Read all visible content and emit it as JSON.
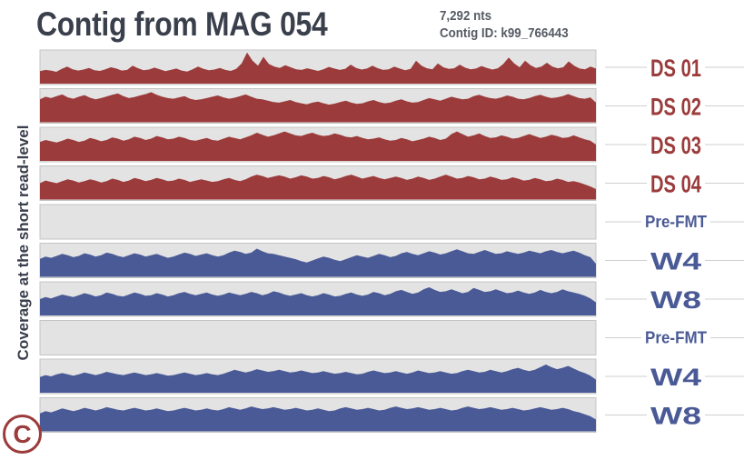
{
  "header": {
    "title": "Contig from MAG 054",
    "length": "7,292 nts",
    "contig_id": "Contig ID: k99_766443"
  },
  "panel_letter": "C",
  "chart_data": {
    "type": "area",
    "title": "Contig from MAG 054",
    "ylabel": "Coverage at the short read-level",
    "xlabel": "",
    "x_extent": [
      0,
      7292
    ],
    "series": [
      {
        "name": "DS 01",
        "color": "#9c3b3b",
        "label_size": "large",
        "values": [
          0.38,
          0.42,
          0.4,
          0.36,
          0.45,
          0.52,
          0.44,
          0.4,
          0.43,
          0.48,
          0.41,
          0.39,
          0.44,
          0.5,
          0.46,
          0.4,
          0.42,
          0.55,
          0.47,
          0.41,
          0.43,
          0.49,
          0.44,
          0.38,
          0.42,
          0.46,
          0.4,
          0.37,
          0.44,
          0.52,
          0.45,
          0.41,
          0.43,
          0.48,
          0.42,
          0.39,
          0.45,
          0.62,
          0.95,
          0.7,
          0.55,
          0.82,
          0.6,
          0.52,
          0.48,
          0.56,
          0.5,
          0.44,
          0.42,
          0.47,
          0.43,
          0.39,
          0.44,
          0.51,
          0.46,
          0.42,
          0.45,
          0.58,
          0.48,
          0.43,
          0.46,
          0.55,
          0.47,
          0.42,
          0.44,
          0.52,
          0.46,
          0.41,
          0.45,
          0.7,
          0.55,
          0.47,
          0.44,
          0.62,
          0.5,
          0.45,
          0.47,
          0.58,
          0.49,
          0.44,
          0.46,
          0.54,
          0.48,
          0.43,
          0.47,
          0.6,
          0.8,
          0.62,
          0.5,
          0.7,
          0.56,
          0.48,
          0.52,
          0.64,
          0.52,
          0.47,
          0.5,
          0.68,
          0.55,
          0.46,
          0.44,
          0.52,
          0.46
        ]
      },
      {
        "name": "DS 02",
        "color": "#9c3b3b",
        "label_size": "large",
        "values": [
          0.7,
          0.78,
          0.74,
          0.8,
          0.85,
          0.76,
          0.72,
          0.78,
          0.83,
          0.75,
          0.7,
          0.74,
          0.79,
          0.84,
          0.88,
          0.8,
          0.74,
          0.77,
          0.82,
          0.86,
          0.92,
          0.84,
          0.78,
          0.74,
          0.72,
          0.76,
          0.8,
          0.72,
          0.68,
          0.7,
          0.74,
          0.78,
          0.82,
          0.76,
          0.72,
          0.75,
          0.8,
          0.85,
          0.78,
          0.72,
          0.7,
          0.66,
          0.62,
          0.6,
          0.64,
          0.68,
          0.62,
          0.58,
          0.55,
          0.6,
          0.63,
          0.58,
          0.54,
          0.57,
          0.62,
          0.66,
          0.6,
          0.56,
          0.58,
          0.64,
          0.68,
          0.62,
          0.58,
          0.6,
          0.66,
          0.7,
          0.64,
          0.6,
          0.62,
          0.68,
          0.74,
          0.7,
          0.66,
          0.72,
          0.78,
          0.74,
          0.7,
          0.72,
          0.8,
          0.84,
          0.78,
          0.74,
          0.72,
          0.76,
          0.82,
          0.78,
          0.72,
          0.7,
          0.74,
          0.8,
          0.84,
          0.78,
          0.74,
          0.76,
          0.8,
          0.86,
          0.8,
          0.74,
          0.72,
          0.76,
          0.6
        ]
      },
      {
        "name": "DS 03",
        "color": "#9c3b3b",
        "label_size": "large",
        "values": [
          0.58,
          0.64,
          0.6,
          0.56,
          0.62,
          0.68,
          0.64,
          0.58,
          0.62,
          0.7,
          0.66,
          0.6,
          0.64,
          0.72,
          0.68,
          0.62,
          0.66,
          0.74,
          0.7,
          0.64,
          0.68,
          0.76,
          0.72,
          0.66,
          0.68,
          0.74,
          0.7,
          0.64,
          0.62,
          0.66,
          0.7,
          0.64,
          0.62,
          0.68,
          0.74,
          0.7,
          0.66,
          0.72,
          0.78,
          0.86,
          0.8,
          0.74,
          0.78,
          0.84,
          0.9,
          0.84,
          0.78,
          0.76,
          0.82,
          0.86,
          0.8,
          0.76,
          0.78,
          0.84,
          0.8,
          0.74,
          0.72,
          0.76,
          0.7,
          0.66,
          0.68,
          0.72,
          0.66,
          0.62,
          0.64,
          0.7,
          0.66,
          0.6,
          0.64,
          0.68,
          0.74,
          0.7,
          0.64,
          0.68,
          0.82,
          0.9,
          0.82,
          0.74,
          0.78,
          0.84,
          0.76,
          0.7,
          0.72,
          0.78,
          0.74,
          0.68,
          0.7,
          0.76,
          0.82,
          0.76,
          0.7,
          0.74,
          0.8,
          0.76,
          0.7,
          0.72,
          0.78,
          0.72,
          0.66,
          0.62,
          0.5
        ]
      },
      {
        "name": "DS 04",
        "color": "#9c3b3b",
        "label_size": "large",
        "values": [
          0.5,
          0.58,
          0.54,
          0.5,
          0.56,
          0.62,
          0.58,
          0.52,
          0.56,
          0.62,
          0.58,
          0.52,
          0.56,
          0.64,
          0.6,
          0.54,
          0.58,
          0.66,
          0.62,
          0.56,
          0.6,
          0.66,
          0.62,
          0.56,
          0.58,
          0.64,
          0.6,
          0.54,
          0.58,
          0.62,
          0.58,
          0.54,
          0.56,
          0.62,
          0.66,
          0.6,
          0.56,
          0.62,
          0.7,
          0.76,
          0.72,
          0.66,
          0.7,
          0.74,
          0.7,
          0.64,
          0.68,
          0.74,
          0.7,
          0.64,
          0.66,
          0.72,
          0.68,
          0.62,
          0.66,
          0.72,
          0.76,
          0.7,
          0.64,
          0.68,
          0.72,
          0.66,
          0.62,
          0.66,
          0.7,
          0.66,
          0.6,
          0.64,
          0.7,
          0.66,
          0.6,
          0.64,
          0.7,
          0.76,
          0.7,
          0.64,
          0.66,
          0.72,
          0.68,
          0.62,
          0.64,
          0.7,
          0.66,
          0.6,
          0.62,
          0.68,
          0.64,
          0.58,
          0.6,
          0.66,
          0.62,
          0.56,
          0.58,
          0.64,
          0.6,
          0.54,
          0.56,
          0.52,
          0.46,
          0.4,
          0.32
        ]
      },
      {
        "name": "Pre-FMT",
        "color": "#4a5a96",
        "label_size": "small",
        "values": []
      },
      {
        "name": "W4",
        "color": "#4a5a96",
        "label_size": "large",
        "values": [
          0.55,
          0.62,
          0.58,
          0.64,
          0.7,
          0.66,
          0.6,
          0.64,
          0.72,
          0.68,
          0.62,
          0.66,
          0.74,
          0.7,
          0.64,
          0.6,
          0.66,
          0.72,
          0.68,
          0.62,
          0.66,
          0.7,
          0.64,
          0.58,
          0.62,
          0.68,
          0.74,
          0.7,
          0.64,
          0.68,
          0.72,
          0.66,
          0.62,
          0.66,
          0.74,
          0.8,
          0.76,
          0.7,
          0.74,
          0.86,
          0.78,
          0.72,
          0.7,
          0.66,
          0.62,
          0.58,
          0.54,
          0.48,
          0.44,
          0.5,
          0.56,
          0.62,
          0.58,
          0.52,
          0.48,
          0.54,
          0.6,
          0.66,
          0.62,
          0.58,
          0.64,
          0.7,
          0.66,
          0.6,
          0.64,
          0.72,
          0.76,
          0.7,
          0.66,
          0.72,
          0.78,
          0.74,
          0.68,
          0.72,
          0.78,
          0.84,
          0.78,
          0.72,
          0.7,
          0.76,
          0.82,
          0.76,
          0.7,
          0.72,
          0.78,
          0.74,
          0.7,
          0.74,
          0.8,
          0.76,
          0.72,
          0.78,
          0.82,
          0.76,
          0.72,
          0.76,
          0.8,
          0.74,
          0.66,
          0.6,
          0.4
        ]
      },
      {
        "name": "W8",
        "color": "#4a5a96",
        "label_size": "large",
        "values": [
          0.5,
          0.56,
          0.52,
          0.58,
          0.64,
          0.6,
          0.56,
          0.62,
          0.68,
          0.64,
          0.58,
          0.62,
          0.7,
          0.66,
          0.6,
          0.58,
          0.64,
          0.7,
          0.66,
          0.6,
          0.62,
          0.68,
          0.64,
          0.58,
          0.62,
          0.68,
          0.72,
          0.66,
          0.62,
          0.66,
          0.7,
          0.64,
          0.6,
          0.64,
          0.7,
          0.66,
          0.62,
          0.66,
          0.72,
          0.68,
          0.62,
          0.66,
          0.74,
          0.7,
          0.64,
          0.6,
          0.64,
          0.68,
          0.62,
          0.58,
          0.62,
          0.68,
          0.64,
          0.58,
          0.6,
          0.66,
          0.7,
          0.64,
          0.6,
          0.64,
          0.72,
          0.68,
          0.62,
          0.66,
          0.74,
          0.78,
          0.72,
          0.66,
          0.7,
          0.8,
          0.86,
          0.78,
          0.72,
          0.74,
          0.8,
          0.74,
          0.68,
          0.72,
          0.84,
          0.78,
          0.72,
          0.74,
          0.8,
          0.74,
          0.68,
          0.7,
          0.76,
          0.7,
          0.66,
          0.7,
          0.78,
          0.72,
          0.68,
          0.72,
          0.8,
          0.74,
          0.7,
          0.66,
          0.6,
          0.52,
          0.4
        ]
      },
      {
        "name": "Pre-FMT",
        "color": "#4a5a96",
        "label_size": "small",
        "values": []
      },
      {
        "name": "W4",
        "color": "#4a5a96",
        "label_size": "large",
        "values": [
          0.48,
          0.54,
          0.5,
          0.56,
          0.6,
          0.56,
          0.52,
          0.56,
          0.62,
          0.58,
          0.54,
          0.58,
          0.64,
          0.6,
          0.56,
          0.54,
          0.58,
          0.62,
          0.58,
          0.54,
          0.56,
          0.6,
          0.56,
          0.52,
          0.54,
          0.58,
          0.62,
          0.58,
          0.54,
          0.56,
          0.6,
          0.56,
          0.54,
          0.58,
          0.64,
          0.7,
          0.66,
          0.62,
          0.66,
          0.72,
          0.68,
          0.64,
          0.66,
          0.7,
          0.66,
          0.62,
          0.64,
          0.68,
          0.64,
          0.6,
          0.62,
          0.66,
          0.62,
          0.58,
          0.6,
          0.64,
          0.6,
          0.56,
          0.58,
          0.64,
          0.68,
          0.64,
          0.6,
          0.62,
          0.66,
          0.62,
          0.58,
          0.62,
          0.68,
          0.64,
          0.6,
          0.62,
          0.66,
          0.62,
          0.58,
          0.6,
          0.66,
          0.7,
          0.66,
          0.62,
          0.64,
          0.7,
          0.66,
          0.62,
          0.66,
          0.72,
          0.76,
          0.7,
          0.66,
          0.7,
          0.78,
          0.86,
          0.78,
          0.72,
          0.76,
          0.82,
          0.74,
          0.66,
          0.6,
          0.52,
          0.4
        ]
      },
      {
        "name": "W8",
        "color": "#4a5a96",
        "label_size": "large",
        "values": [
          0.55,
          0.62,
          0.58,
          0.64,
          0.7,
          0.66,
          0.62,
          0.66,
          0.72,
          0.68,
          0.64,
          0.68,
          0.74,
          0.7,
          0.66,
          0.64,
          0.68,
          0.72,
          0.68,
          0.64,
          0.66,
          0.7,
          0.66,
          0.62,
          0.64,
          0.68,
          0.72,
          0.68,
          0.64,
          0.66,
          0.7,
          0.66,
          0.64,
          0.68,
          0.74,
          0.7,
          0.66,
          0.7,
          0.76,
          0.72,
          0.68,
          0.7,
          0.74,
          0.7,
          0.66,
          0.68,
          0.72,
          0.68,
          0.64,
          0.66,
          0.7,
          0.66,
          0.62,
          0.64,
          0.7,
          0.74,
          0.7,
          0.66,
          0.68,
          0.72,
          0.68,
          0.64,
          0.66,
          0.72,
          0.76,
          0.72,
          0.68,
          0.7,
          0.74,
          0.7,
          0.66,
          0.68,
          0.72,
          0.68,
          0.64,
          0.66,
          0.72,
          0.76,
          0.72,
          0.68,
          0.7,
          0.74,
          0.7,
          0.66,
          0.68,
          0.72,
          0.68,
          0.64,
          0.66,
          0.7,
          0.74,
          0.7,
          0.66,
          0.68,
          0.72,
          0.68,
          0.62,
          0.58,
          0.52,
          0.46,
          0.36
        ]
      }
    ],
    "grid": false,
    "legend": "right"
  }
}
